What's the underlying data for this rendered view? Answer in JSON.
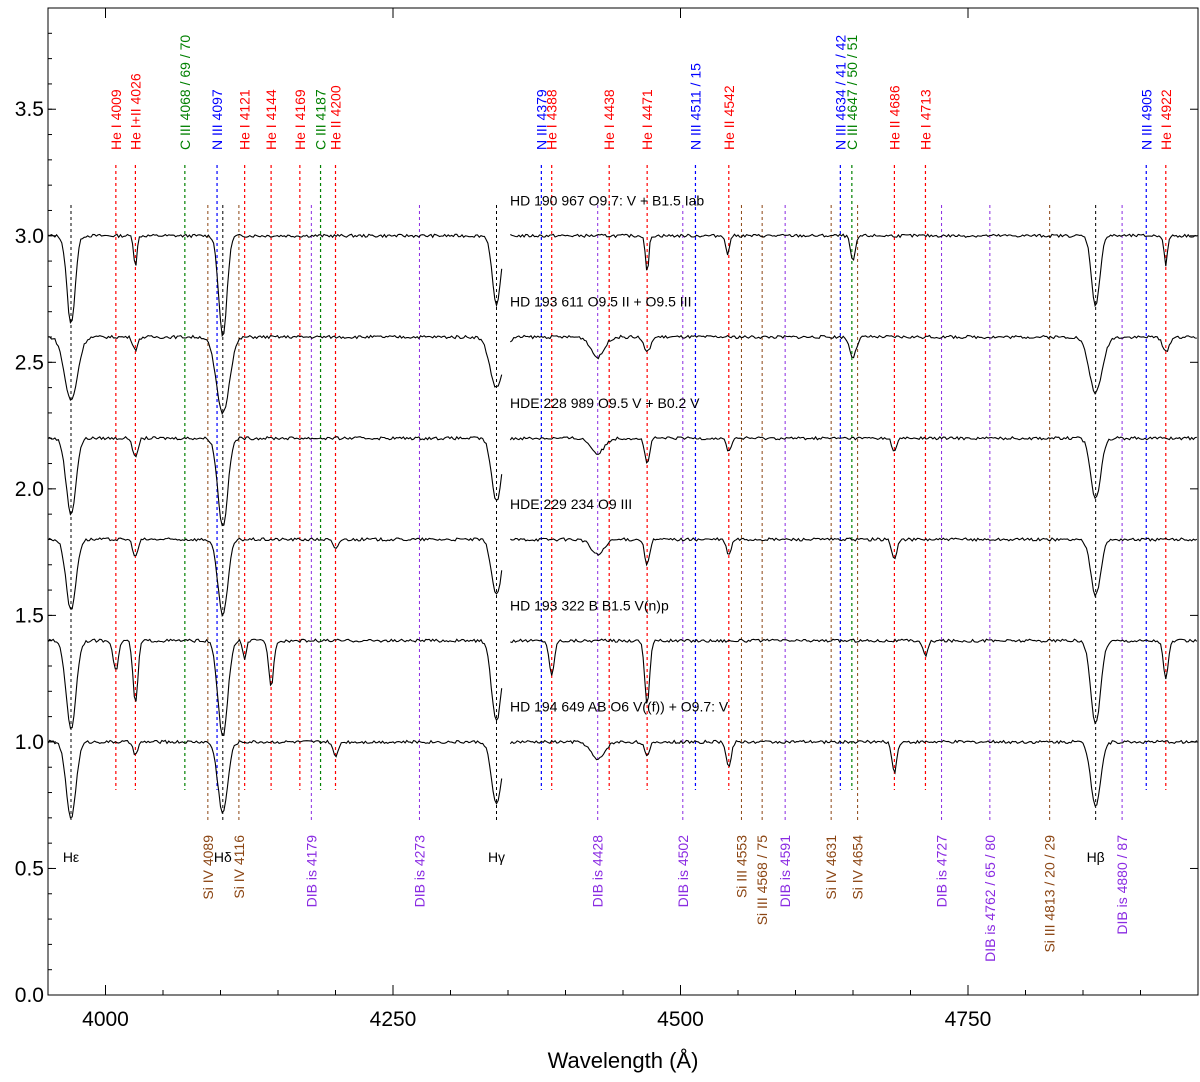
{
  "chart_data": {
    "type": "line",
    "title": "",
    "xlabel": "Wavelength (Å)",
    "ylabel": "",
    "xlim": [
      3950,
      4950
    ],
    "ylim": [
      0.0,
      3.9
    ],
    "x_ticks": [
      {
        "value": 4000,
        "label": "4000"
      },
      {
        "value": 4250,
        "label": "4250"
      },
      {
        "value": 4500,
        "label": "4500"
      },
      {
        "value": 4750,
        "label": "4750"
      }
    ],
    "y_ticks": [
      {
        "value": 0.0,
        "label": "0.0"
      },
      {
        "value": 0.5,
        "label": "0.5"
      },
      {
        "value": 1.0,
        "label": "1.0"
      },
      {
        "value": 1.5,
        "label": "1.5"
      },
      {
        "value": 2.0,
        "label": "2.0"
      },
      {
        "value": 2.5,
        "label": "2.5"
      },
      {
        "value": 3.0,
        "label": "3.0"
      },
      {
        "value": 3.5,
        "label": "3.5"
      }
    ],
    "colors": {
      "He": "#ff0000",
      "N": "#0000ff",
      "C": "#008000",
      "Si": "#8b4513",
      "DIB": "#8a2be2",
      "H": "#000000",
      "spectrum": "#000000"
    },
    "series": [
      {
        "name": "HD 190 967   O9.7: V + B1.5 Iab",
        "offset": 3.0,
        "lines": [
          {
            "w": 3970,
            "depth": 0.35,
            "width": 5
          },
          {
            "w": 4026,
            "depth": 0.12,
            "width": 2
          },
          {
            "w": 4102,
            "depth": 0.4,
            "width": 5
          },
          {
            "w": 4340,
            "depth": 0.28,
            "width": 5
          },
          {
            "w": 4471,
            "depth": 0.15,
            "width": 2
          },
          {
            "w": 4541,
            "depth": 0.08,
            "width": 2
          },
          {
            "w": 4650,
            "depth": 0.1,
            "width": 3
          },
          {
            "w": 4861,
            "depth": 0.28,
            "width": 5
          },
          {
            "w": 4922,
            "depth": 0.12,
            "width": 2
          }
        ]
      },
      {
        "name": "HD 193 611   O9.5 II + O9.5 III",
        "offset": 2.6,
        "lines": [
          {
            "w": 3970,
            "depth": 0.25,
            "width": 8
          },
          {
            "w": 4026,
            "depth": 0.05,
            "width": 3
          },
          {
            "w": 4102,
            "depth": 0.3,
            "width": 8
          },
          {
            "w": 4340,
            "depth": 0.2,
            "width": 8
          },
          {
            "w": 4428,
            "depth": 0.08,
            "width": 8
          },
          {
            "w": 4471,
            "depth": 0.06,
            "width": 4
          },
          {
            "w": 4650,
            "depth": 0.08,
            "width": 4
          },
          {
            "w": 4861,
            "depth": 0.22,
            "width": 8
          },
          {
            "w": 4922,
            "depth": 0.06,
            "width": 4
          }
        ]
      },
      {
        "name": "HDE 228 989   O9.5 V + B0.2 V",
        "offset": 2.2,
        "lines": [
          {
            "w": 3970,
            "depth": 0.3,
            "width": 6
          },
          {
            "w": 4026,
            "depth": 0.08,
            "width": 3
          },
          {
            "w": 4102,
            "depth": 0.35,
            "width": 6
          },
          {
            "w": 4340,
            "depth": 0.25,
            "width": 6
          },
          {
            "w": 4428,
            "depth": 0.06,
            "width": 8
          },
          {
            "w": 4471,
            "depth": 0.1,
            "width": 3
          },
          {
            "w": 4542,
            "depth": 0.05,
            "width": 3
          },
          {
            "w": 4686,
            "depth": 0.05,
            "width": 3
          },
          {
            "w": 4861,
            "depth": 0.24,
            "width": 6
          }
        ]
      },
      {
        "name": "HDE 229 234   O9 III",
        "offset": 1.8,
        "lines": [
          {
            "w": 3970,
            "depth": 0.28,
            "width": 6
          },
          {
            "w": 4026,
            "depth": 0.07,
            "width": 3
          },
          {
            "w": 4102,
            "depth": 0.3,
            "width": 6
          },
          {
            "w": 4200,
            "depth": 0.04,
            "width": 3
          },
          {
            "w": 4340,
            "depth": 0.22,
            "width": 6
          },
          {
            "w": 4428,
            "depth": 0.06,
            "width": 8
          },
          {
            "w": 4471,
            "depth": 0.1,
            "width": 3
          },
          {
            "w": 4542,
            "depth": 0.06,
            "width": 3
          },
          {
            "w": 4686,
            "depth": 0.08,
            "width": 3
          },
          {
            "w": 4861,
            "depth": 0.22,
            "width": 6
          }
        ]
      },
      {
        "name": "HD 193 322 B   B1.5 V(n)p",
        "offset": 1.4,
        "lines": [
          {
            "w": 3970,
            "depth": 0.35,
            "width": 6
          },
          {
            "w": 4009,
            "depth": 0.12,
            "width": 3
          },
          {
            "w": 4026,
            "depth": 0.25,
            "width": 3
          },
          {
            "w": 4102,
            "depth": 0.38,
            "width": 6
          },
          {
            "w": 4121,
            "depth": 0.08,
            "width": 2
          },
          {
            "w": 4144,
            "depth": 0.18,
            "width": 3
          },
          {
            "w": 4340,
            "depth": 0.32,
            "width": 6
          },
          {
            "w": 4388,
            "depth": 0.14,
            "width": 3
          },
          {
            "w": 4471,
            "depth": 0.25,
            "width": 3
          },
          {
            "w": 4713,
            "depth": 0.06,
            "width": 3
          },
          {
            "w": 4861,
            "depth": 0.33,
            "width": 6
          },
          {
            "w": 4922,
            "depth": 0.15,
            "width": 3
          }
        ]
      },
      {
        "name": "HD 194 649 AB   O6 V((f)) + O9.7: V",
        "offset": 1.0,
        "lines": [
          {
            "w": 3970,
            "depth": 0.3,
            "width": 6
          },
          {
            "w": 4026,
            "depth": 0.05,
            "width": 3
          },
          {
            "w": 4102,
            "depth": 0.28,
            "width": 6
          },
          {
            "w": 4200,
            "depth": 0.06,
            "width": 3
          },
          {
            "w": 4340,
            "depth": 0.25,
            "width": 6
          },
          {
            "w": 4428,
            "depth": 0.07,
            "width": 8
          },
          {
            "w": 4471,
            "depth": 0.06,
            "width": 3
          },
          {
            "w": 4542,
            "depth": 0.1,
            "width": 3
          },
          {
            "w": 4686,
            "depth": 0.12,
            "width": 3
          },
          {
            "w": 4861,
            "depth": 0.25,
            "width": 6
          }
        ]
      }
    ],
    "top_line_labels": [
      {
        "label": "He I 4009",
        "w": 4009,
        "group": "He"
      },
      {
        "label": "He I+II 4026",
        "w": 4026,
        "group": "He"
      },
      {
        "label": "C III 4068 / 69 / 70",
        "w": 4069,
        "group": "C"
      },
      {
        "label": "N III 4097",
        "w": 4097,
        "group": "N"
      },
      {
        "label": "He I 4121",
        "w": 4121,
        "group": "He"
      },
      {
        "label": "He I 4144",
        "w": 4144,
        "group": "He"
      },
      {
        "label": "He I 4169",
        "w": 4169,
        "group": "He"
      },
      {
        "label": "C III 4187",
        "w": 4187,
        "group": "C"
      },
      {
        "label": "He II 4200",
        "w": 4200,
        "group": "He"
      },
      {
        "label": "N III 4379",
        "w": 4379,
        "group": "N"
      },
      {
        "label": "He I 4388",
        "w": 4388,
        "group": "He"
      },
      {
        "label": "He I 4438",
        "w": 4438,
        "group": "He"
      },
      {
        "label": "He I 4471",
        "w": 4471,
        "group": "He"
      },
      {
        "label": "N III 4511 / 15",
        "w": 4513,
        "group": "N"
      },
      {
        "label": "He II 4542",
        "w": 4542,
        "group": "He"
      },
      {
        "label": "N III 4634 / 41 / 42",
        "w": 4639,
        "group": "N"
      },
      {
        "label": "C III 4647 / 50 / 51",
        "w": 4649,
        "group": "C"
      },
      {
        "label": "He II 4686",
        "w": 4686,
        "group": "He"
      },
      {
        "label": "He I 4713",
        "w": 4713,
        "group": "He"
      },
      {
        "label": "N III 4905",
        "w": 4905,
        "group": "N"
      },
      {
        "label": "He I 4922",
        "w": 4922,
        "group": "He"
      }
    ],
    "bottom_line_labels": [
      {
        "label": "Hε",
        "w": 3970,
        "group": "H"
      },
      {
        "label": "Si IV 4089",
        "w": 4089,
        "group": "Si"
      },
      {
        "label": "Hδ",
        "w": 4102,
        "group": "H"
      },
      {
        "label": "Si IV 4116",
        "w": 4116,
        "group": "Si"
      },
      {
        "label": "DIB is 4179",
        "w": 4179,
        "group": "DIB"
      },
      {
        "label": "DIB is 4273",
        "w": 4273,
        "group": "DIB"
      },
      {
        "label": "Hγ",
        "w": 4340,
        "group": "H"
      },
      {
        "label": "DIB is 4428",
        "w": 4428,
        "group": "DIB"
      },
      {
        "label": "DIB is 4502",
        "w": 4502,
        "group": "DIB"
      },
      {
        "label": "Si III 4553",
        "w": 4553,
        "group": "Si"
      },
      {
        "label": "Si III 4568 / 75",
        "w": 4571,
        "group": "Si"
      },
      {
        "label": "DIB is 4591",
        "w": 4591,
        "group": "DIB"
      },
      {
        "label": "Si IV 4631",
        "w": 4631,
        "group": "Si"
      },
      {
        "label": "Si IV 4654",
        "w": 4654,
        "group": "Si"
      },
      {
        "label": "DIB is 4727",
        "w": 4727,
        "group": "DIB"
      },
      {
        "label": "DIB is 4762 / 65 / 80",
        "w": 4769,
        "group": "DIB"
      },
      {
        "label": "Si III 4813 / 20 / 29",
        "w": 4821,
        "group": "Si"
      },
      {
        "label": "Hβ",
        "w": 4861,
        "group": "H"
      },
      {
        "label": "DIB is 4880 / 87",
        "w": 4884,
        "group": "DIB"
      }
    ]
  }
}
